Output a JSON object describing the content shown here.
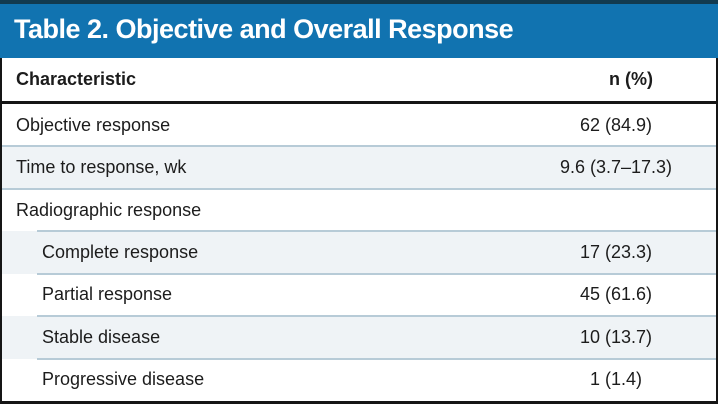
{
  "table": {
    "title": "Table 2. Objective and Overall Response",
    "columns": {
      "characteristic": "Characteristic",
      "value": "n (%)"
    },
    "rows": [
      {
        "label": "Objective response",
        "value": "62 (84.9)",
        "indent": false
      },
      {
        "label": "Time to response, wk",
        "value": "9.6 (3.7–17.3)",
        "indent": false
      },
      {
        "label": "Radiographic response",
        "value": "",
        "indent": false
      },
      {
        "label": "Complete response",
        "value": "17 (23.3)",
        "indent": true
      },
      {
        "label": "Partial response",
        "value": "45 (61.6)",
        "indent": true
      },
      {
        "label": "Stable disease",
        "value": "10 (13.7)",
        "indent": true
      },
      {
        "label": "Progressive disease",
        "value": "1 (1.4)",
        "indent": true
      }
    ],
    "colors": {
      "header_bg": "#1173b0",
      "header_top_line": "#123a4f",
      "divider": "#b7cbd7",
      "rule": "#151515",
      "row_tint": "#eff3f6"
    }
  }
}
